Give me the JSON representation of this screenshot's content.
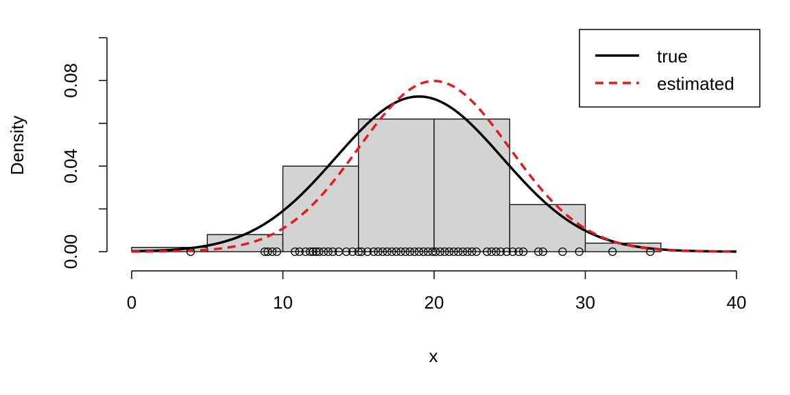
{
  "chart_data": {
    "type": "histogram",
    "xlabel": "x",
    "ylabel": "Density",
    "xlim": [
      0,
      40
    ],
    "ylim": [
      0,
      0.1
    ],
    "x_ticks": [
      0,
      10,
      20,
      30,
      40
    ],
    "x_tick_labels": [
      "0",
      "10",
      "20",
      "30",
      "40"
    ],
    "y_ticks": [
      0,
      0.02,
      0.04,
      0.06,
      0.08,
      0.1
    ],
    "y_tick_labels": [
      "0.00",
      "",
      "0.04",
      "",
      "0.08",
      ""
    ],
    "grid": false,
    "bars": [
      {
        "start": 0,
        "end": 5,
        "density": 0.002
      },
      {
        "start": 5,
        "end": 10,
        "density": 0.008
      },
      {
        "start": 10,
        "end": 15,
        "density": 0.04
      },
      {
        "start": 15,
        "end": 20,
        "density": 0.062
      },
      {
        "start": 20,
        "end": 25,
        "density": 0.062
      },
      {
        "start": 25,
        "end": 30,
        "density": 0.022
      },
      {
        "start": 30,
        "end": 35,
        "density": 0.004
      }
    ],
    "bar_fill": "#d3d3d3",
    "series": [
      {
        "name": "true",
        "color": "#000000",
        "dash": "solid",
        "mean": 19,
        "sd": 5.5
      },
      {
        "name": "estimated",
        "color": "#e41a1c",
        "dash": "dashed",
        "mean": 20,
        "sd": 5.0
      }
    ],
    "rug_points": [
      3.9,
      8.8,
      9.0,
      9.3,
      9.6,
      10.8,
      11.1,
      11.5,
      11.8,
      12.0,
      12.2,
      12.4,
      12.7,
      13.0,
      13.3,
      13.7,
      14.2,
      14.6,
      15.0,
      15.2,
      15.6,
      16.0,
      16.3,
      16.6,
      16.9,
      17.2,
      17.5,
      17.8,
      18.1,
      18.4,
      18.7,
      19.0,
      19.3,
      19.6,
      19.9,
      20.1,
      20.4,
      20.7,
      21.0,
      21.3,
      21.6,
      21.9,
      22.2,
      22.5,
      22.8,
      23.5,
      23.8,
      24.1,
      24.4,
      24.8,
      25.2,
      25.6,
      25.9,
      26.9,
      27.2,
      28.5,
      29.6,
      31.8,
      34.3
    ],
    "legend": {
      "position": "top-right",
      "entries": [
        "true",
        "estimated"
      ]
    }
  }
}
